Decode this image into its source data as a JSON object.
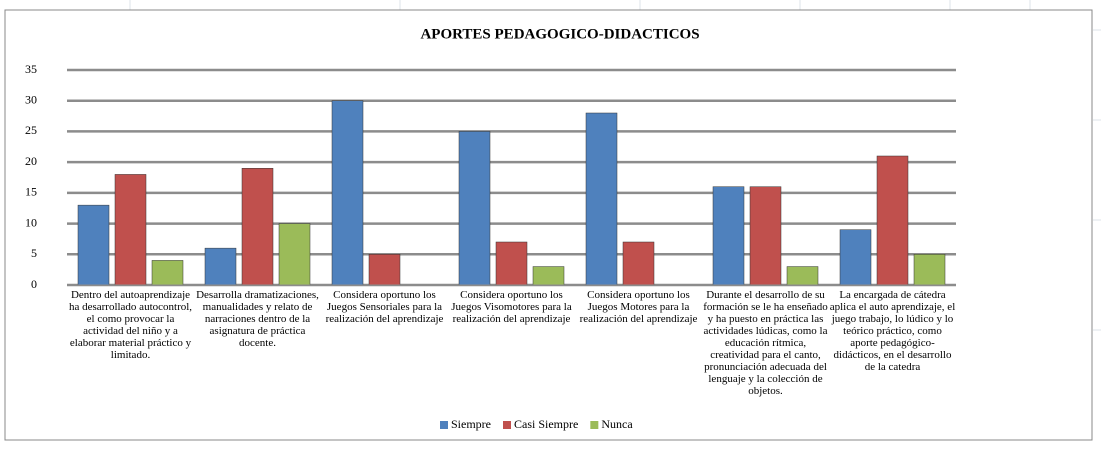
{
  "chart_data": {
    "type": "bar",
    "title": "APORTES PEDAGOGICO-DIDACTICOS",
    "categories": [
      "Dentro del autoaprendizaje ha desarrollado autocontrol, el como provocar la actividad del niño y a elaborar material práctico y limitado.",
      "Desarrolla dramatizaciones, manualidades y relato de narraciones dentro de la asignatura de práctica docente.",
      "Considera oportuno los Juegos Sensoriales para la realización del aprendizaje",
      "Considera oportuno los Juegos Visomotores para la realización del aprendizaje",
      "Considera oportuno los Juegos Motores para la realización del aprendizaje",
      "Durante el desarrollo de su formación se le ha enseñado y ha puesto en práctica las actividades lúdicas, como la educación rítmica, creatividad para el canto, pronunciación adecuada del lenguaje y la colección de objetos.",
      "La encargada de cátedra aplica el auto aprendizaje, el juego trabajo, lo lúdico y lo teórico práctico, como aporte pedagógico-didácticos, en el desarrollo de la catedra"
    ],
    "series": [
      {
        "name": "Siempre",
        "color": "#4f81bd",
        "values": [
          13,
          6,
          30,
          25,
          28,
          16,
          9
        ]
      },
      {
        "name": "Casi Siempre",
        "color": "#c0504d",
        "values": [
          18,
          19,
          5,
          7,
          7,
          16,
          21
        ]
      },
      {
        "name": "Nunca",
        "color": "#9bbb59",
        "values": [
          4,
          10,
          0,
          3,
          0,
          3,
          5
        ]
      }
    ],
    "ylim": [
      0,
      35
    ],
    "yticks": [
      0,
      5,
      10,
      15,
      20,
      25,
      30,
      35
    ],
    "grid": true,
    "legend": "bottom"
  }
}
